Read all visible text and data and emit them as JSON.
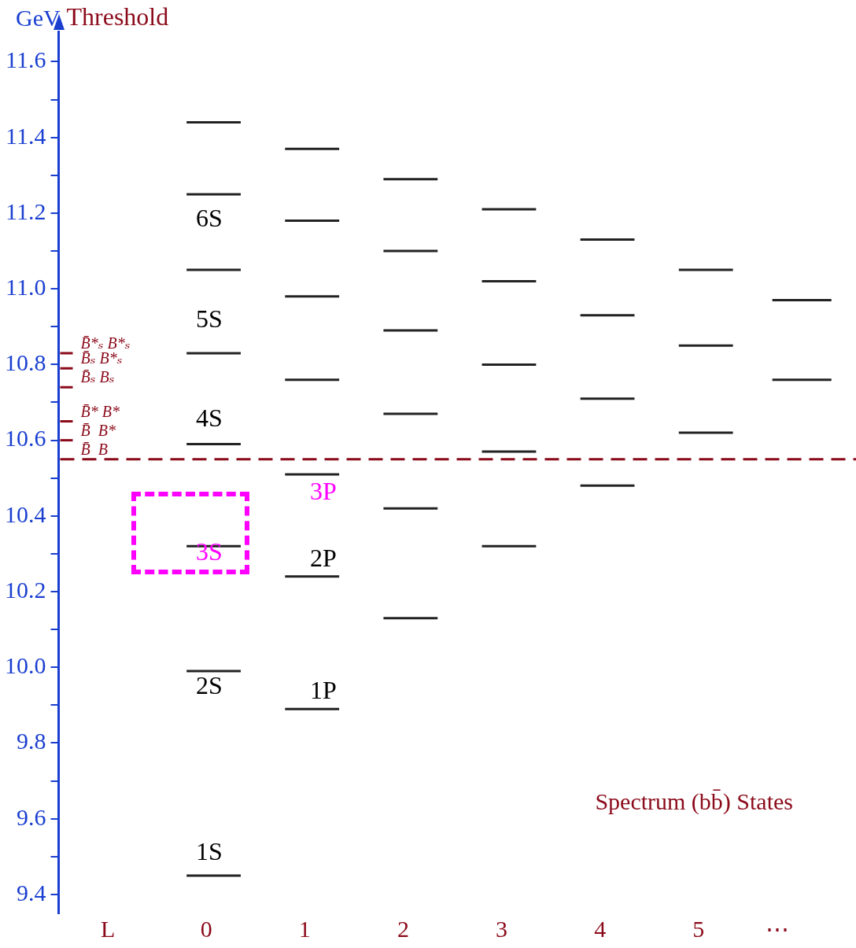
{
  "chart_data": {
    "type": "line",
    "ylabel": "GeV",
    "marker": "none",
    "grid": false,
    "legend": false,
    "series": [
      {
        "color": "#222222",
        "x": [
          -0.2,
          0.35
        ],
        "values": [
          11.44,
          11.44
        ]
      },
      {
        "color": "#222222",
        "x": [
          -0.2,
          0.35
        ],
        "values": [
          11.25,
          11.25
        ]
      },
      {
        "color": "#222222",
        "x": [
          -0.2,
          0.35
        ],
        "values": [
          11.05,
          11.05
        ]
      },
      {
        "color": "#222222",
        "x": [
          -0.2,
          0.35
        ],
        "values": [
          10.83,
          10.83
        ]
      },
      {
        "color": "#222222",
        "x": [
          -0.2,
          0.35
        ],
        "values": [
          10.59,
          10.59
        ]
      },
      {
        "color": "#222222",
        "x": [
          -0.2,
          0.35
        ],
        "values": [
          10.32,
          10.32
        ]
      },
      {
        "color": "#222222",
        "x": [
          -0.2,
          0.35
        ],
        "values": [
          9.99,
          9.99
        ]
      },
      {
        "color": "#222222",
        "x": [
          -0.2,
          0.35
        ],
        "values": [
          9.45,
          9.45
        ]
      },
      {
        "color": "#222222",
        "x": [
          0.8,
          1.35
        ],
        "values": [
          11.37,
          11.37
        ]
      },
      {
        "color": "#222222",
        "x": [
          0.8,
          1.35
        ],
        "values": [
          11.18,
          11.18
        ]
      },
      {
        "color": "#222222",
        "x": [
          0.8,
          1.35
        ],
        "values": [
          10.98,
          10.98
        ]
      },
      {
        "color": "#222222",
        "x": [
          0.8,
          1.35
        ],
        "values": [
          10.76,
          10.76
        ]
      },
      {
        "color": "#222222",
        "x": [
          0.8,
          1.35
        ],
        "values": [
          10.51,
          10.51
        ]
      },
      {
        "color": "#222222",
        "x": [
          0.8,
          1.35
        ],
        "values": [
          10.24,
          10.24
        ]
      },
      {
        "color": "#222222",
        "x": [
          0.8,
          1.35
        ],
        "values": [
          9.89,
          9.89
        ]
      },
      {
        "color": "#222222",
        "x": [
          1.8,
          2.35
        ],
        "values": [
          11.29,
          11.29
        ]
      },
      {
        "color": "#222222",
        "x": [
          1.8,
          2.35
        ],
        "values": [
          11.1,
          11.1
        ]
      },
      {
        "color": "#222222",
        "x": [
          1.8,
          2.35
        ],
        "values": [
          10.89,
          10.89
        ]
      },
      {
        "color": "#222222",
        "x": [
          1.8,
          2.35
        ],
        "values": [
          10.67,
          10.67
        ]
      },
      {
        "color": "#222222",
        "x": [
          1.8,
          2.35
        ],
        "values": [
          10.42,
          10.42
        ]
      },
      {
        "color": "#222222",
        "x": [
          1.8,
          2.35
        ],
        "values": [
          10.13,
          10.13
        ]
      },
      {
        "color": "#222222",
        "x": [
          2.8,
          3.35
        ],
        "values": [
          11.21,
          11.21
        ]
      },
      {
        "color": "#222222",
        "x": [
          2.8,
          3.35
        ],
        "values": [
          11.02,
          11.02
        ]
      },
      {
        "color": "#222222",
        "x": [
          2.8,
          3.35
        ],
        "values": [
          10.8,
          10.8
        ]
      },
      {
        "color": "#222222",
        "x": [
          2.8,
          3.35
        ],
        "values": [
          10.57,
          10.57
        ]
      },
      {
        "color": "#222222",
        "x": [
          2.8,
          3.35
        ],
        "values": [
          10.32,
          10.32
        ]
      },
      {
        "color": "#222222",
        "x": [
          3.8,
          4.35
        ],
        "values": [
          11.13,
          11.13
        ]
      },
      {
        "color": "#222222",
        "x": [
          3.8,
          4.35
        ],
        "values": [
          10.93,
          10.93
        ]
      },
      {
        "color": "#222222",
        "x": [
          3.8,
          4.35
        ],
        "values": [
          10.71,
          10.71
        ]
      },
      {
        "color": "#222222",
        "x": [
          3.8,
          4.35
        ],
        "values": [
          10.48,
          10.48
        ]
      },
      {
        "color": "#222222",
        "x": [
          4.8,
          5.35
        ],
        "values": [
          11.05,
          11.05
        ]
      },
      {
        "color": "#222222",
        "x": [
          4.8,
          5.35
        ],
        "values": [
          10.85,
          10.85
        ]
      },
      {
        "color": "#222222",
        "x": [
          4.8,
          5.35
        ],
        "values": [
          10.62,
          10.62
        ]
      },
      {
        "color": "#222222",
        "x": [
          5.75,
          6.35
        ],
        "values": [
          10.97,
          10.97
        ]
      },
      {
        "color": "#222222",
        "x": [
          5.75,
          6.35
        ],
        "values": [
          10.76,
          10.76
        ]
      }
    ],
    "xlim": [
      -1.5,
      6.6
    ],
    "xticks": [
      {
        "value": -1,
        "label": "L"
      },
      0,
      1,
      2,
      3,
      4,
      5,
      {
        "value": 5.8,
        "label": "⋯"
      }
    ],
    "ylim": [
      9.35,
      11.68
    ],
    "yticks": [
      9.4,
      {
        "value": 9.5,
        "label": null
      },
      9.6,
      {
        "value": 9.7,
        "label": null
      },
      9.8,
      {
        "value": 9.9,
        "label": null
      },
      {
        "value": 10,
        "label": "10.0"
      },
      {
        "value": 10.1,
        "label": null
      },
      10.2,
      {
        "value": 10.3,
        "label": null
      },
      10.4,
      {
        "value": 10.5,
        "label": null
      },
      10.6,
      {
        "value": 10.7,
        "label": null
      },
      10.8,
      {
        "value": 10.9,
        "label": null
      },
      {
        "value": 11,
        "label": "11.0"
      },
      {
        "value": 11.1,
        "label": null
      },
      11.2,
      {
        "value": 11.3,
        "label": null
      },
      11.4,
      {
        "value": 11.5,
        "label": null
      },
      11.6
    ],
    "ref_lines": [
      {
        "axis": "y",
        "value": 10.55,
        "label": "B̄  B",
        "color": "#8b0a1a",
        "line_style": "dashed"
      },
      {
        "axis": "y",
        "value": 10.6,
        "label": "B̄  B*",
        "color": "#8b0a1a"
      },
      {
        "axis": "y",
        "value": 10.65,
        "label": "B̄* B*",
        "color": "#8b0a1a"
      },
      {
        "axis": "y",
        "value": 10.74,
        "label": "B̄ₛ Bₛ",
        "color": "#8b0a1a"
      },
      {
        "axis": "y",
        "value": 10.79,
        "label": "B̄ₛ B*ₛ",
        "color": "#8b0a1a"
      },
      {
        "axis": "y",
        "value": 10.83,
        "label": "B̄*ₛ B*ₛ",
        "color": "#8b0a1a"
      }
    ],
    "annotations": [
      "Threshold",
      "Spectrum (bb̄) States",
      "6S",
      "5S",
      "4S",
      "3S",
      "2S",
      "1S",
      "3P",
      "2P",
      "1P"
    ]
  }
}
